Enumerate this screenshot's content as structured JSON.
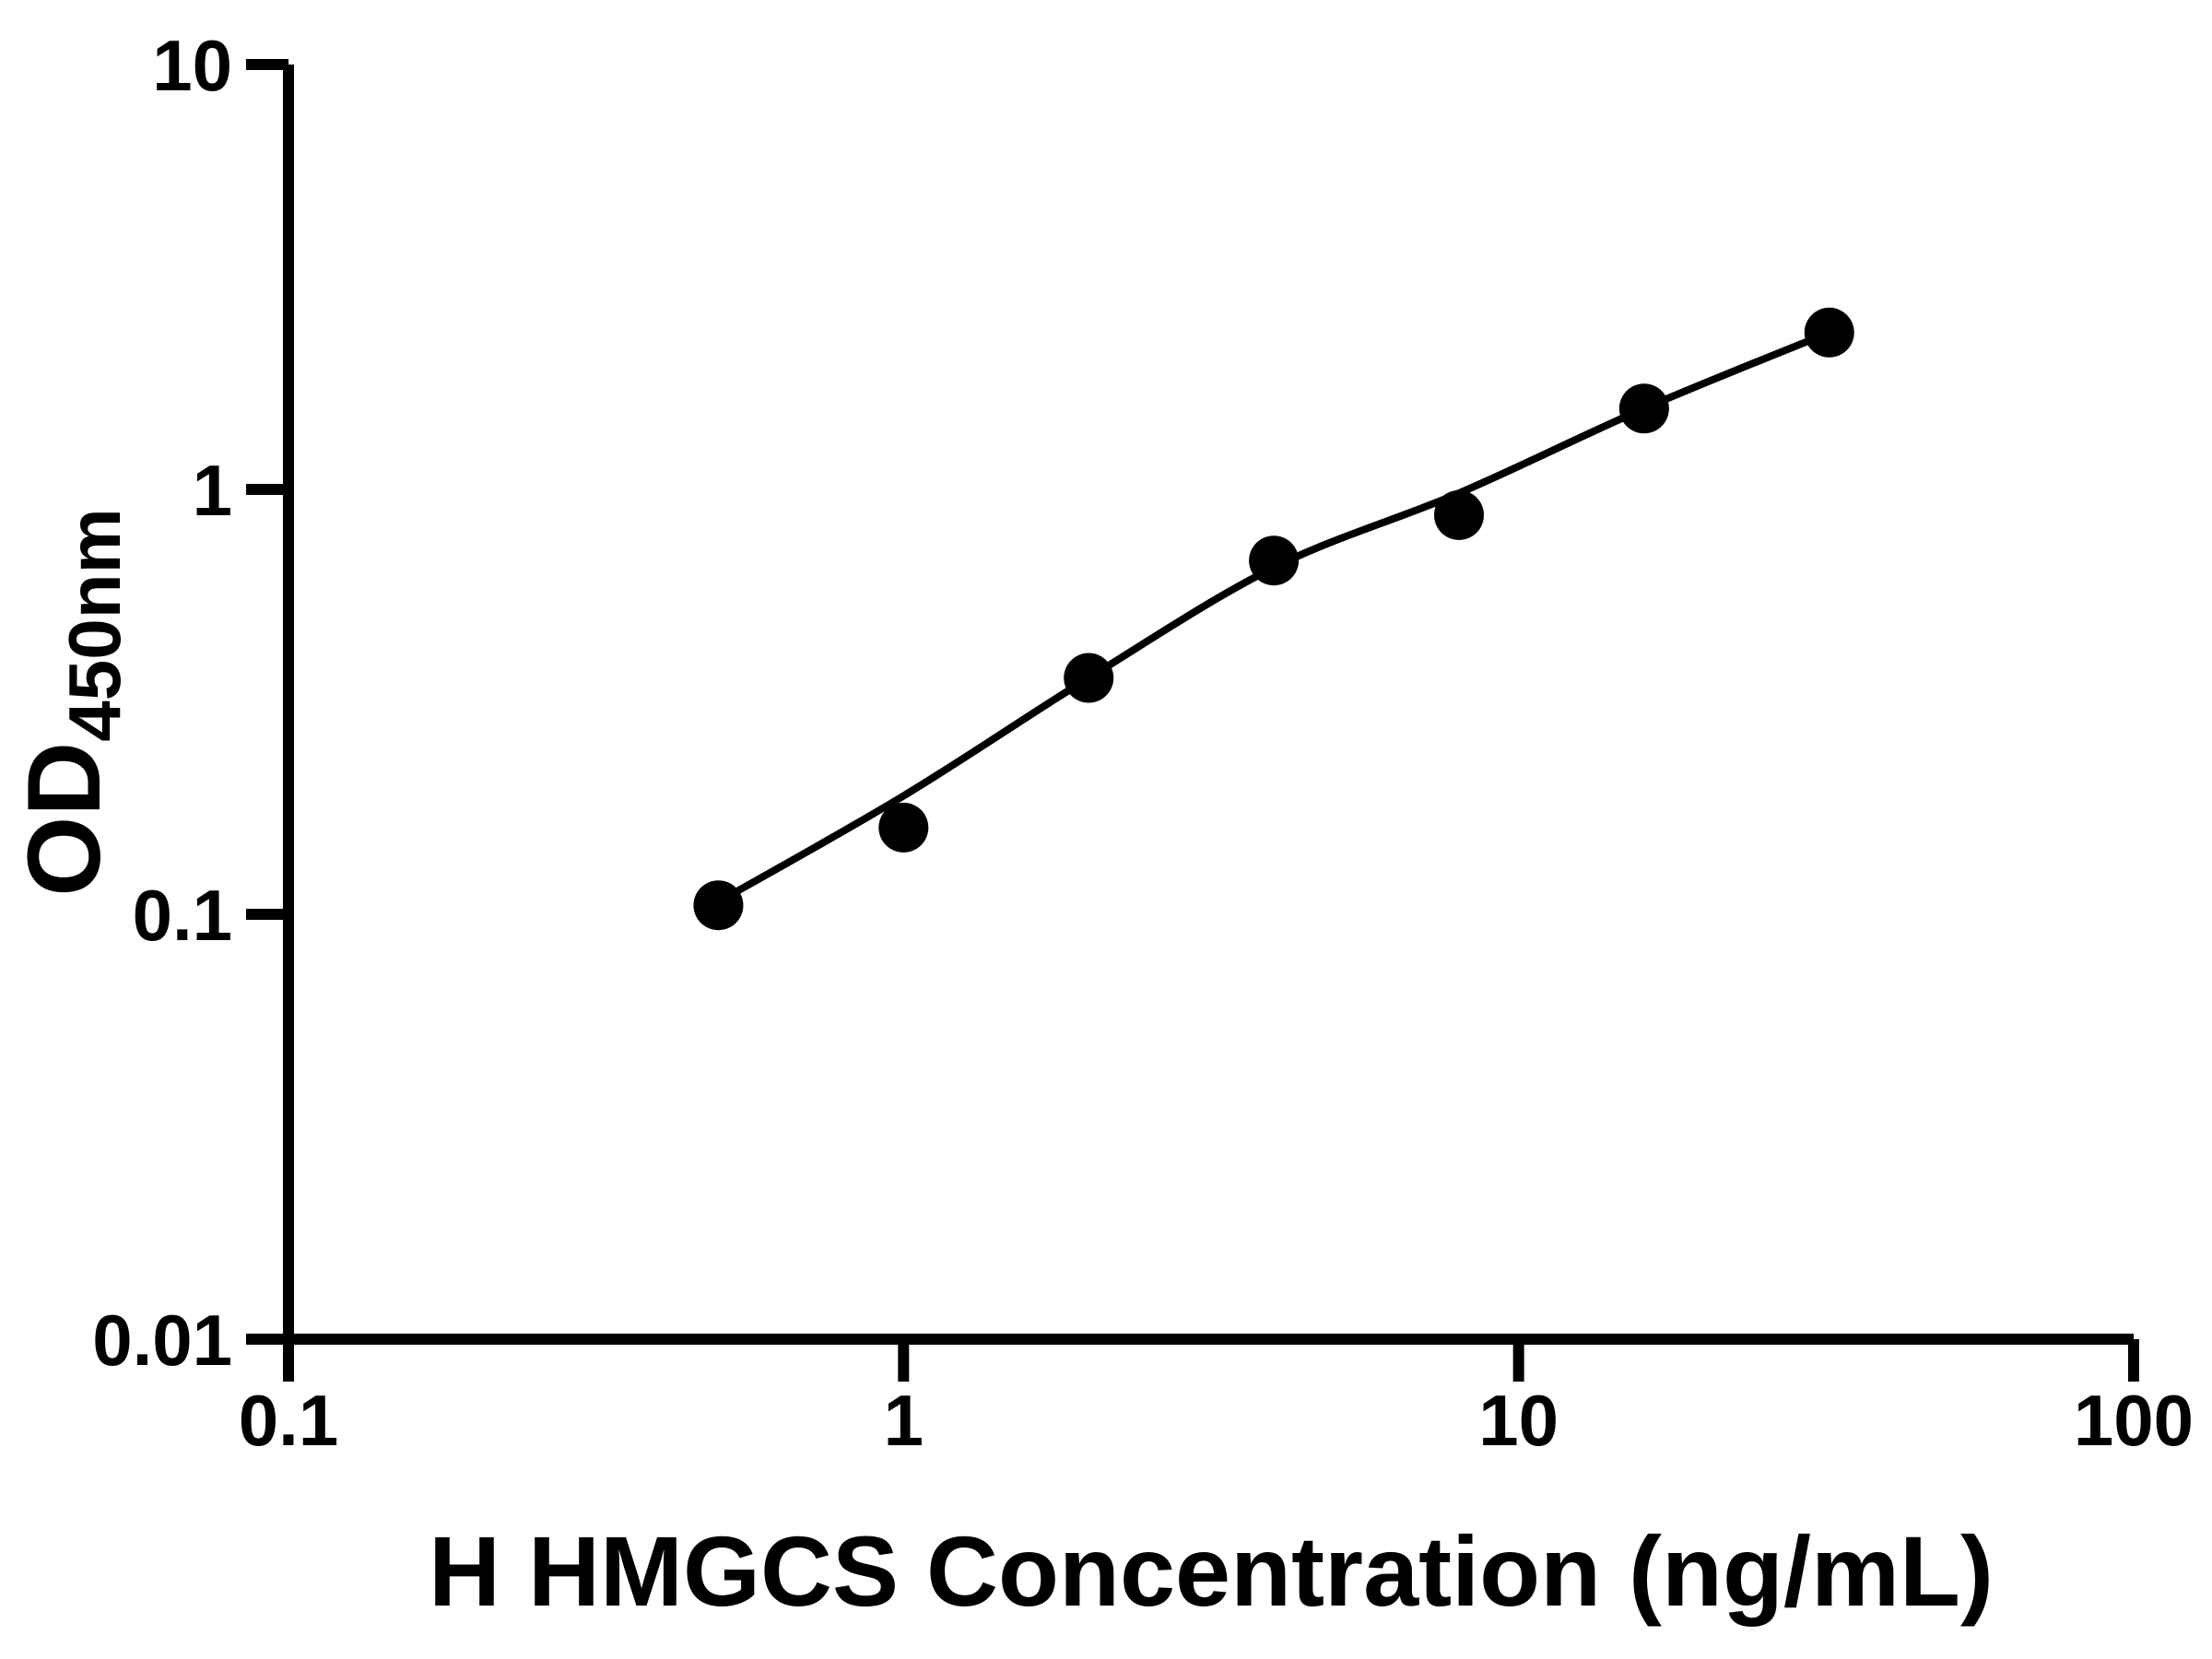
{
  "figure": {
    "background_color": "#ffffff",
    "ink_color": "#000000"
  },
  "chart_data": {
    "type": "scatter",
    "title": "",
    "xlabel": "H HMGCS Concentration (ng/mL)",
    "ylabel": "OD450nm",
    "ylabel_main": "OD",
    "ylabel_sub": "450nm",
    "x_scale": "log10",
    "y_scale": "log10",
    "xlim": [
      0.1,
      100
    ],
    "ylim": [
      0.01,
      10
    ],
    "grid": false,
    "legend": null,
    "x_ticks": [
      {
        "value": 0.1,
        "label": "0.1"
      },
      {
        "value": 1,
        "label": "1"
      },
      {
        "value": 10,
        "label": "10"
      },
      {
        "value": 100,
        "label": "100"
      }
    ],
    "y_ticks": [
      {
        "value": 10,
        "label": "10"
      },
      {
        "value": 1,
        "label": "1"
      },
      {
        "value": 0.1,
        "label": "0.1"
      },
      {
        "value": 0.01,
        "label": "0.01"
      }
    ],
    "series": [
      {
        "name": "standard-curve-points",
        "marker": "filled-circle",
        "color": "#000000",
        "x": [
          0.5,
          1,
          2,
          4,
          8,
          16,
          32
        ],
        "y": [
          0.105,
          0.16,
          0.36,
          0.68,
          0.87,
          1.55,
          2.34
        ]
      }
    ],
    "fit_curve": {
      "name": "fitted-curve",
      "color": "#000000",
      "x": [
        0.5,
        1,
        2,
        4,
        8,
        16,
        32
      ],
      "y": [
        0.107,
        0.19,
        0.36,
        0.655,
        0.98,
        1.55,
        2.34
      ]
    }
  }
}
